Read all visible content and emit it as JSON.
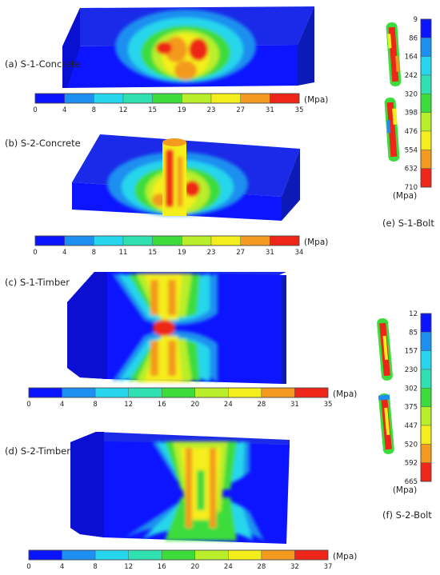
{
  "palette": [
    "#0a14ff",
    "#1d8ff0",
    "#25d6ec",
    "#2fe0b0",
    "#3ddc3d",
    "#b9ee2a",
    "#f4ee1c",
    "#f39a1f",
    "#ee2619"
  ],
  "panels": [
    {
      "id": "a",
      "label": "(a)  S-1-Concrete",
      "unit": "(Mpa)",
      "ticks": [
        "0",
        "4",
        "8",
        "12",
        "15",
        "19",
        "23",
        "27",
        "31",
        "35"
      ]
    },
    {
      "id": "b",
      "label": "(b)  S-2-Concrete",
      "unit": "(Mpa)",
      "ticks": [
        "0",
        "4",
        "8",
        "11",
        "15",
        "19",
        "23",
        "27",
        "31",
        "34"
      ]
    },
    {
      "id": "c",
      "label": "(c)  S-1-Timber",
      "unit": "(Mpa)",
      "ticks": [
        "0",
        "4",
        "8",
        "12",
        "16",
        "20",
        "24",
        "28",
        "31",
        "35"
      ]
    },
    {
      "id": "d",
      "label": "(d)  S-2-Timber",
      "unit": "(Mpa)",
      "ticks": [
        "0",
        "4",
        "8",
        "12",
        "16",
        "20",
        "24",
        "28",
        "32",
        "37"
      ]
    },
    {
      "id": "e",
      "label": "(e)  S-1-Bolt",
      "unit": "(Mpa)",
      "ticks": [
        "9",
        "86",
        "164",
        "242",
        "320",
        "398",
        "476",
        "554",
        "632",
        "710"
      ]
    },
    {
      "id": "f",
      "label": "(f)  S-2-Bolt",
      "unit": "(Mpa)",
      "ticks": [
        "12",
        "85",
        "157",
        "230",
        "302",
        "375",
        "447",
        "520",
        "592",
        "665"
      ]
    }
  ]
}
